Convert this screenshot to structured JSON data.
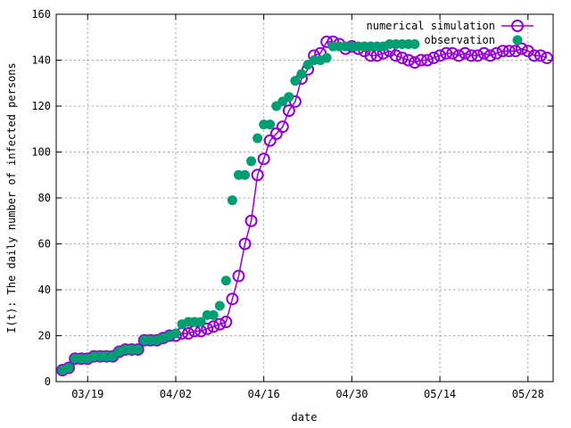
{
  "chart_data": {
    "type": "scatter",
    "title": "",
    "xlabel": "date",
    "ylabel": "I(t): The daily number of infected persons",
    "ylim": [
      0,
      160
    ],
    "yticks": [
      0,
      20,
      40,
      60,
      80,
      100,
      120,
      140,
      160
    ],
    "xlim": [
      "2020-03-14",
      "2020-06-01"
    ],
    "xticks": [
      "03/19",
      "04/02",
      "04/16",
      "04/30",
      "05/14",
      "05/28"
    ],
    "xtick_dates": [
      "2020-03-19",
      "2020-04-02",
      "2020-04-16",
      "2020-04-30",
      "2020-05-14",
      "2020-05-28"
    ],
    "grid": true,
    "legend_position": "top-right",
    "series": [
      {
        "name": "numerical simulation",
        "style": "line+open-circle",
        "color": "#9400d3",
        "x": [
          "2020-03-15",
          "2020-03-16",
          "2020-03-17",
          "2020-03-18",
          "2020-03-19",
          "2020-03-20",
          "2020-03-21",
          "2020-03-22",
          "2020-03-23",
          "2020-03-24",
          "2020-03-25",
          "2020-03-26",
          "2020-03-27",
          "2020-03-28",
          "2020-03-29",
          "2020-03-30",
          "2020-03-31",
          "2020-04-01",
          "2020-04-02",
          "2020-04-03",
          "2020-04-04",
          "2020-04-05",
          "2020-04-06",
          "2020-04-07",
          "2020-04-08",
          "2020-04-09",
          "2020-04-10",
          "2020-04-11",
          "2020-04-12",
          "2020-04-13",
          "2020-04-14",
          "2020-04-15",
          "2020-04-16",
          "2020-04-17",
          "2020-04-18",
          "2020-04-19",
          "2020-04-20",
          "2020-04-21",
          "2020-04-22",
          "2020-04-23",
          "2020-04-24",
          "2020-04-25",
          "2020-04-26",
          "2020-04-27",
          "2020-04-28",
          "2020-04-29",
          "2020-04-30",
          "2020-05-01",
          "2020-05-02",
          "2020-05-03",
          "2020-05-04",
          "2020-05-05",
          "2020-05-06",
          "2020-05-07",
          "2020-05-08",
          "2020-05-09",
          "2020-05-10",
          "2020-05-11",
          "2020-05-12",
          "2020-05-13",
          "2020-05-14",
          "2020-05-15",
          "2020-05-16",
          "2020-05-17",
          "2020-05-18",
          "2020-05-19",
          "2020-05-20",
          "2020-05-21",
          "2020-05-22",
          "2020-05-23",
          "2020-05-24",
          "2020-05-25",
          "2020-05-26",
          "2020-05-27",
          "2020-05-28",
          "2020-05-29",
          "2020-05-30",
          "2020-05-31"
        ],
        "y": [
          5,
          6,
          10,
          10,
          10,
          11,
          11,
          11,
          11,
          13,
          14,
          14,
          14,
          18,
          18,
          18,
          19,
          20,
          20,
          21,
          21,
          22,
          22,
          23,
          24,
          25,
          26,
          36,
          46,
          60,
          70,
          90,
          97,
          105,
          108,
          111,
          118,
          122,
          132,
          136,
          142,
          143,
          148,
          148,
          147,
          145,
          146,
          145,
          144,
          142,
          142,
          143,
          144,
          142,
          141,
          140,
          139,
          140,
          140,
          141,
          142,
          143,
          143,
          142,
          143,
          142,
          142,
          143,
          142,
          143,
          144,
          144,
          144,
          145,
          144,
          142,
          142,
          141
        ]
      },
      {
        "name": "observation",
        "style": "filled-circle",
        "color": "#009e73",
        "x": [
          "2020-03-15",
          "2020-03-16",
          "2020-03-17",
          "2020-03-18",
          "2020-03-19",
          "2020-03-20",
          "2020-03-21",
          "2020-03-22",
          "2020-03-23",
          "2020-03-24",
          "2020-03-25",
          "2020-03-26",
          "2020-03-27",
          "2020-03-28",
          "2020-03-29",
          "2020-03-30",
          "2020-03-31",
          "2020-04-01",
          "2020-04-02",
          "2020-04-03",
          "2020-04-04",
          "2020-04-05",
          "2020-04-06",
          "2020-04-07",
          "2020-04-08",
          "2020-04-09",
          "2020-04-10",
          "2020-04-11",
          "2020-04-12",
          "2020-04-13",
          "2020-04-14",
          "2020-04-15",
          "2020-04-16",
          "2020-04-17",
          "2020-04-18",
          "2020-04-19",
          "2020-04-20",
          "2020-04-21",
          "2020-04-22",
          "2020-04-23",
          "2020-04-24",
          "2020-04-25",
          "2020-04-26",
          "2020-04-27",
          "2020-04-28",
          "2020-04-29",
          "2020-04-30",
          "2020-05-01",
          "2020-05-02",
          "2020-05-03",
          "2020-05-04",
          "2020-05-05",
          "2020-05-06",
          "2020-05-07",
          "2020-05-08",
          "2020-05-09",
          "2020-05-10"
        ],
        "y": [
          5,
          6,
          10,
          10,
          10,
          11,
          11,
          11,
          11,
          13,
          14,
          14,
          14,
          18,
          18,
          18,
          19,
          20,
          21,
          25,
          26,
          26,
          26,
          29,
          29,
          33,
          44,
          79,
          90,
          90,
          96,
          106,
          112,
          112,
          120,
          122,
          124,
          131,
          134,
          138,
          140,
          140,
          141,
          146,
          146,
          146,
          146,
          146,
          146,
          146,
          146,
          146,
          147,
          147,
          147,
          147,
          147
        ]
      }
    ]
  }
}
